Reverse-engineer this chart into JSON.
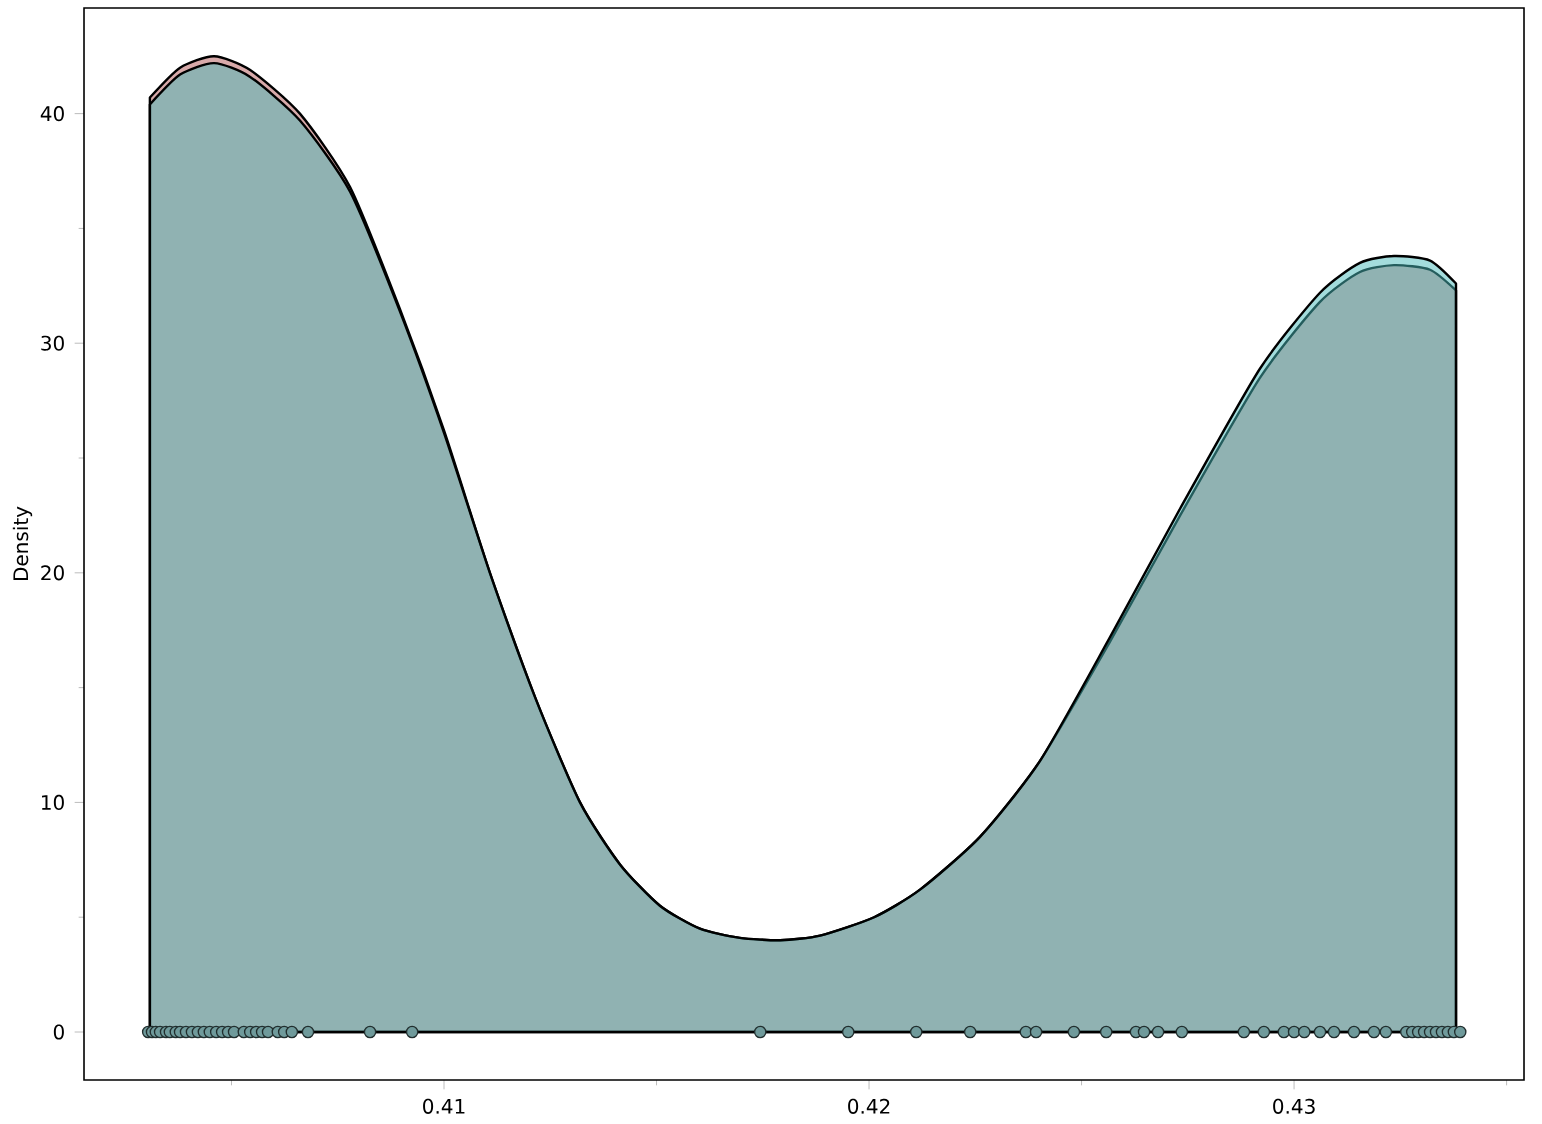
{
  "chart_data": {
    "type": "area",
    "ylabel": "Density",
    "xlim": [
      0.40153,
      0.43541
    ],
    "ylim": [
      -2.09,
      44.6
    ],
    "xticks": [
      {
        "value": 0.405,
        "label": null
      },
      0.41,
      {
        "value": 0.415,
        "label": null
      },
      0.42,
      {
        "value": 0.425,
        "label": null
      },
      0.43,
      {
        "value": 0.435,
        "label": null
      }
    ],
    "yticks": [
      0,
      {
        "value": 5,
        "label": null
      },
      10,
      {
        "value": 15,
        "label": null
      },
      20,
      {
        "value": 25,
        "label": null
      },
      30,
      {
        "value": 35,
        "label": null
      },
      40
    ],
    "x": [
      0.40308,
      0.40379,
      0.40459,
      0.40544,
      0.40661,
      0.40779,
      0.40896,
      0.41,
      0.41108,
      0.41216,
      0.4132,
      0.41414,
      0.41508,
      0.41602,
      0.41696,
      0.41791,
      0.41885,
      0.42012,
      0.4212,
      0.42261,
      0.42402,
      0.42567,
      0.42732,
      0.4292,
      0.43061,
      0.43155,
      0.43235,
      0.4332,
      0.43381
    ],
    "series": [
      {
        "color": "#b15555",
        "values": [
          40.7,
          42.0,
          42.5,
          41.9,
          40.0,
          36.8,
          31.5,
          26.2,
          20.0,
          14.5,
          10.0,
          7.3,
          5.5,
          4.5,
          4.1,
          4.0,
          4.2,
          5.0,
          6.2,
          8.5,
          11.8,
          17.0,
          22.5,
          28.5,
          31.8,
          33.1,
          33.4,
          33.2,
          32.3
        ]
      },
      {
        "color": "#47b9b9",
        "values": [
          40.4,
          41.7,
          42.2,
          41.6,
          39.7,
          36.6,
          31.4,
          26.1,
          20.0,
          14.5,
          10.0,
          7.3,
          5.5,
          4.5,
          4.1,
          4.0,
          4.2,
          5.0,
          6.2,
          8.5,
          11.8,
          17.2,
          22.8,
          28.9,
          32.2,
          33.5,
          33.8,
          33.6,
          32.6
        ]
      },
      {
        "type": "scatter",
        "color": "#6f9a9b",
        "x": [
          0.40304,
          0.40313,
          0.40322,
          0.40332,
          0.40346,
          0.40355,
          0.40369,
          0.40379,
          0.40393,
          0.40407,
          0.40421,
          0.40435,
          0.40449,
          0.40464,
          0.40478,
          0.40492,
          0.40506,
          0.40529,
          0.40544,
          0.40558,
          0.40572,
          0.40586,
          0.40609,
          0.40624,
          0.40642,
          0.4068,
          0.40826,
          0.40925,
          0.41744,
          0.41951,
          0.42111,
          0.42238,
          0.42369,
          0.42393,
          0.42482,
          0.42558,
          0.42628,
          0.42647,
          0.4268,
          0.42736,
          0.42882,
          0.42929,
          0.42976,
          0.43,
          0.43024,
          0.43061,
          0.43094,
          0.43141,
          0.43188,
          0.43216,
          0.43264,
          0.43278,
          0.43292,
          0.43306,
          0.4332,
          0.43334,
          0.43348,
          0.43362,
          0.43376,
          0.43391
        ],
        "values": [
          0,
          0,
          0,
          0,
          0,
          0,
          0,
          0,
          0,
          0,
          0,
          0,
          0,
          0,
          0,
          0,
          0,
          0,
          0,
          0,
          0,
          0,
          0,
          0,
          0,
          0,
          0,
          0,
          0,
          0,
          0,
          0,
          0,
          0,
          0,
          0,
          0,
          0,
          0,
          0,
          0,
          0,
          0,
          0,
          0,
          0,
          0,
          0,
          0,
          0,
          0,
          0,
          0,
          0,
          0,
          0,
          0,
          0,
          0,
          0
        ]
      }
    ]
  }
}
